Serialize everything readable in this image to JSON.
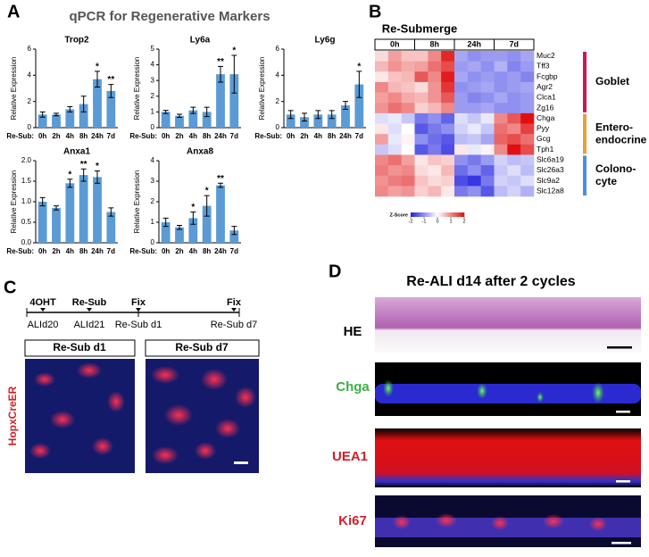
{
  "panel_a": {
    "letter": "A",
    "title": "qPCR for Regenerative Markers"
  },
  "panel_b": {
    "letter": "B"
  },
  "chart_data": [
    {
      "type": "bar",
      "title": "Trop2",
      "ylabel": "Relative Expression",
      "xlabel": "Re-Sub:",
      "color": "#5b9bd5",
      "categories": [
        "0h",
        "2h",
        "4h",
        "8h",
        "24h",
        "7d"
      ],
      "values": [
        1.0,
        1.0,
        1.4,
        1.8,
        3.7,
        2.8
      ],
      "errors": [
        0.2,
        0.1,
        0.2,
        0.6,
        0.6,
        0.5
      ],
      "annotations": [
        null,
        null,
        null,
        null,
        "*",
        "**"
      ],
      "ylim": [
        0,
        6
      ],
      "yticks": [
        0,
        2,
        4,
        6
      ]
    },
    {
      "type": "bar",
      "title": "Ly6a",
      "ylabel": "Relative Expression",
      "xlabel": "Re-Sub:",
      "color": "#5b9bd5",
      "categories": [
        "0h",
        "2h",
        "4h",
        "8h",
        "24h",
        "7d"
      ],
      "values": [
        1.0,
        0.75,
        1.1,
        1.0,
        3.4,
        3.4
      ],
      "errors": [
        0.1,
        0.1,
        0.2,
        0.3,
        0.5,
        1.2
      ],
      "annotations": [
        null,
        null,
        null,
        null,
        "**",
        "*"
      ],
      "ylim": [
        0,
        5
      ],
      "yticks": [
        0,
        1,
        2,
        3,
        4,
        5
      ]
    },
    {
      "type": "bar",
      "title": "Ly6g",
      "ylabel": "Relative Expression",
      "xlabel": "Re-Sub:",
      "color": "#5b9bd5",
      "categories": [
        "0h",
        "2h",
        "4h",
        "8h",
        "24h",
        "7d"
      ],
      "values": [
        1.0,
        0.8,
        1.0,
        1.0,
        1.7,
        3.3
      ],
      "errors": [
        0.3,
        0.3,
        0.3,
        0.3,
        0.3,
        1.0
      ],
      "annotations": [
        null,
        null,
        null,
        null,
        null,
        "*"
      ],
      "ylim": [
        0,
        6
      ],
      "yticks": [
        0,
        2,
        4,
        6
      ]
    },
    {
      "type": "bar",
      "title": "Anxa1",
      "ylabel": "Relative Expression",
      "xlabel": "Re-Sub:",
      "color": "#5b9bd5",
      "categories": [
        "0h",
        "2h",
        "4h",
        "8h",
        "24h",
        "7d"
      ],
      "values": [
        1.0,
        0.85,
        1.45,
        1.65,
        1.6,
        0.75
      ],
      "errors": [
        0.1,
        0.05,
        0.1,
        0.15,
        0.15,
        0.1
      ],
      "annotations": [
        null,
        null,
        "*",
        "**",
        "*",
        null
      ],
      "ylim": [
        0,
        2
      ],
      "yticks": [
        {
          "value": 0,
          "label": "0.0"
        },
        0.5,
        {
          "value": 1,
          "label": "1.0"
        },
        1.5,
        {
          "value": 2,
          "label": "2.0"
        }
      ]
    },
    {
      "type": "bar",
      "title": "Anxa8",
      "ylabel": "Relative Expression",
      "xlabel": "Re-Sub:",
      "color": "#5b9bd5",
      "categories": [
        "0h",
        "2h",
        "4h",
        "8h",
        "24h",
        "7d"
      ],
      "values": [
        1.0,
        0.75,
        1.2,
        1.8,
        2.8,
        0.6
      ],
      "errors": [
        0.2,
        0.1,
        0.3,
        0.5,
        0.1,
        0.2
      ],
      "annotations": [
        null,
        null,
        "*",
        "*",
        "**",
        null
      ],
      "ylim": [
        0,
        4
      ],
      "yticks": [
        0,
        1,
        2,
        3,
        4
      ]
    },
    {
      "type": "heatmap",
      "title": "Re-Submerge",
      "column_groups": [
        "0h",
        "8h",
        "24h",
        "7d"
      ],
      "row_groups": [
        {
          "label_lines": [
            "Goblet"
          ],
          "color": "#c8185a",
          "rows": [
            "Muc2",
            "Tff3",
            "Fcgbp",
            "Agr2",
            "Clca1",
            "Zg16"
          ]
        },
        {
          "label_lines": [
            "Entero-",
            "endocrine"
          ],
          "color": "#e8a03a",
          "rows": [
            "Chga",
            "Pyy",
            "Gcg",
            "Tph1"
          ]
        },
        {
          "label_lines": [
            "Colono-",
            "cyte"
          ],
          "color": "#4a90d9",
          "rows": [
            "Slc6a19",
            "Slc26a3",
            "Slc9a2",
            "Slc12a8"
          ]
        }
      ],
      "values": [
        [
          0.3,
          0.8,
          0.5,
          0.5,
          1.0,
          1.8,
          -0.8,
          -1.0,
          -0.9,
          -0.9,
          -1.0,
          -0.8
        ],
        [
          0.6,
          0.9,
          0.7,
          0.8,
          1.2,
          1.5,
          -0.9,
          -0.8,
          -1.0,
          -0.7,
          -1.1,
          -0.9
        ],
        [
          0.2,
          0.5,
          0.6,
          1.4,
          1.0,
          1.9,
          -0.8,
          -1.0,
          -0.9,
          -1.0,
          -0.9,
          -1.1
        ],
        [
          1.0,
          0.6,
          0.5,
          0.3,
          0.9,
          1.7,
          -1.0,
          -0.9,
          -0.8,
          -1.0,
          -0.9,
          -0.8
        ],
        [
          0.8,
          1.0,
          0.7,
          0.6,
          0.9,
          1.4,
          -0.9,
          -1.1,
          -1.0,
          -0.8,
          -1.0,
          -0.9
        ],
        [
          0.9,
          1.2,
          1.0,
          0.4,
          0.6,
          1.0,
          -0.9,
          -0.9,
          -0.8,
          -1.0,
          -1.0,
          -0.9
        ],
        [
          -0.3,
          -0.2,
          -0.5,
          -1.2,
          -1.0,
          -1.4,
          -0.3,
          -0.5,
          -0.2,
          1.0,
          1.4,
          2.0
        ],
        [
          0.2,
          -0.3,
          0.0,
          -1.5,
          -1.2,
          -1.0,
          -0.4,
          -0.2,
          -0.5,
          1.2,
          1.0,
          1.6
        ],
        [
          0.8,
          -0.2,
          0.1,
          -1.0,
          -1.3,
          -1.5,
          -0.6,
          -0.5,
          -0.8,
          1.3,
          1.5,
          1.2
        ],
        [
          -0.5,
          -0.3,
          0.0,
          -1.5,
          -1.2,
          -1.6,
          0.2,
          -0.2,
          0.1,
          1.0,
          2.0,
          1.5
        ],
        [
          1.0,
          1.2,
          0.8,
          0.2,
          0.5,
          0.4,
          -1.0,
          -1.2,
          -0.9,
          -0.4,
          -0.6,
          -0.5
        ],
        [
          1.1,
          0.9,
          1.0,
          0.3,
          0.2,
          0.6,
          -1.3,
          -1.0,
          -1.4,
          -0.5,
          -0.3,
          -0.6
        ],
        [
          0.9,
          1.1,
          1.2,
          0.5,
          0.3,
          0.4,
          -1.6,
          -1.8,
          -1.2,
          -0.4,
          -0.5,
          -0.3
        ],
        [
          1.0,
          0.8,
          0.9,
          0.4,
          0.6,
          0.2,
          -1.2,
          -1.0,
          -1.5,
          -0.6,
          -0.4,
          -0.7
        ]
      ],
      "colorbar_label": "Z-Score",
      "zlim": [
        -2,
        2
      ],
      "colorbar_ticks": [
        -2,
        -1,
        0,
        1,
        2
      ],
      "colors": [
        "#2020e0",
        "#ffffff",
        "#e01010"
      ]
    }
  ],
  "panel_c": {
    "letter": "C",
    "timeline_top": [
      "4OHT",
      "Re-Sub",
      "Fix",
      "Fix"
    ],
    "timeline_bottom": [
      "ALId20",
      "ALId21",
      "Re-Sub d1",
      "Re-Sub d7"
    ],
    "image_titles": [
      "Re-Sub d1",
      "Re-Sub d7"
    ],
    "stain_label": "HopxCreER"
  },
  "panel_d": {
    "letter": "D",
    "title": "Re-ALI d14 after 2 cycles",
    "stains": [
      "HE",
      "Chga",
      "UEA1",
      "Ki67"
    ]
  }
}
